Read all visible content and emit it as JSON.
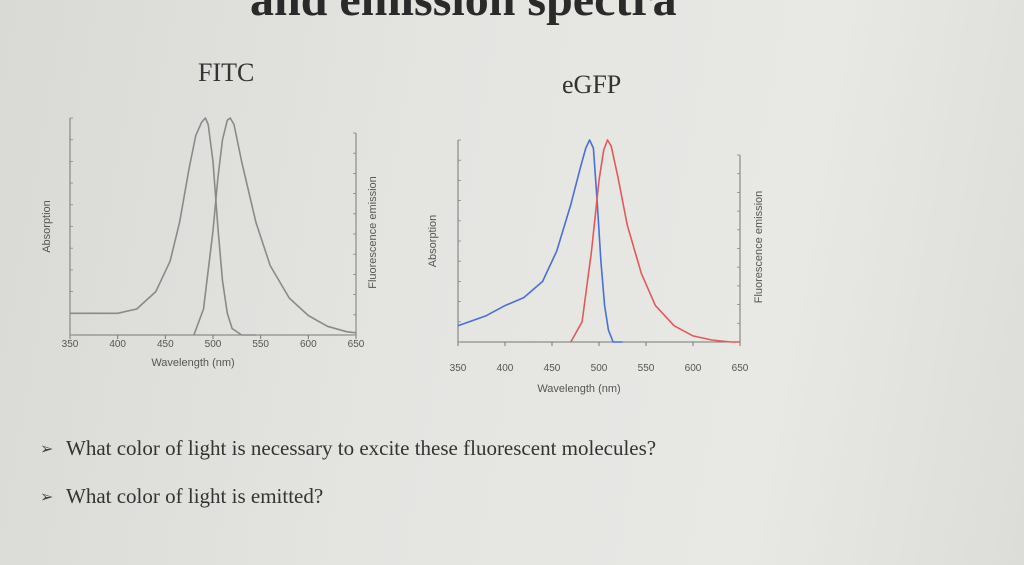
{
  "slide": {
    "title_partial": "and emission spectra",
    "questions": [
      "What color of light is necessary to excite these fluorescent molecules?",
      "What color of light is emitted?"
    ],
    "bullet_glyph": "➢"
  },
  "chart_data": [
    {
      "type": "line",
      "title": "FITC",
      "xlabel": "Wavelength (nm)",
      "ylabel_left": "Absorption",
      "ylabel_right": "Fluorescence emission",
      "x_ticks": [
        350,
        400,
        450,
        500,
        550,
        600,
        650
      ],
      "xlim": [
        350,
        650
      ],
      "ylim": [
        0,
        1
      ],
      "colors": {
        "absorption": "#8a8a8a",
        "emission": "#8a8a8a"
      },
      "series": [
        {
          "role": "absorption",
          "x": [
            350,
            380,
            400,
            420,
            440,
            455,
            465,
            475,
            482,
            488,
            492,
            495,
            500,
            505,
            510,
            515,
            520,
            530,
            545
          ],
          "values": [
            0.1,
            0.1,
            0.1,
            0.12,
            0.2,
            0.34,
            0.52,
            0.77,
            0.92,
            0.98,
            1.0,
            0.97,
            0.8,
            0.5,
            0.25,
            0.1,
            0.03,
            0.0,
            0.0
          ]
        },
        {
          "role": "emission",
          "x": [
            480,
            490,
            500,
            505,
            510,
            515,
            518,
            522,
            530,
            545,
            560,
            580,
            600,
            620,
            640,
            650
          ],
          "values": [
            0.0,
            0.12,
            0.48,
            0.72,
            0.9,
            0.99,
            1.0,
            0.97,
            0.8,
            0.52,
            0.32,
            0.17,
            0.09,
            0.04,
            0.015,
            0.01
          ]
        }
      ]
    },
    {
      "type": "line",
      "title": "eGFP",
      "xlabel": "Wavelength (nm)",
      "ylabel_left": "Absorption",
      "ylabel_right": "Fluorescence emission",
      "x_ticks": [
        350,
        400,
        450,
        500,
        550,
        600,
        650
      ],
      "xlim": [
        350,
        650
      ],
      "ylim": [
        0,
        1
      ],
      "colors": {
        "absorption": "#4a6fd6",
        "emission": "#e05a5a"
      },
      "series": [
        {
          "role": "absorption",
          "x": [
            350,
            380,
            400,
            420,
            440,
            455,
            470,
            480,
            486,
            490,
            494,
            498,
            502,
            506,
            510,
            515,
            525
          ],
          "values": [
            0.08,
            0.13,
            0.18,
            0.22,
            0.3,
            0.45,
            0.68,
            0.86,
            0.96,
            1.0,
            0.96,
            0.7,
            0.4,
            0.18,
            0.06,
            0.0,
            0.0
          ]
        },
        {
          "role": "emission",
          "x": [
            470,
            482,
            492,
            500,
            505,
            509,
            513,
            520,
            530,
            545,
            560,
            580,
            600,
            620,
            640,
            650
          ],
          "values": [
            0.0,
            0.1,
            0.45,
            0.8,
            0.95,
            1.0,
            0.97,
            0.82,
            0.58,
            0.34,
            0.18,
            0.08,
            0.03,
            0.01,
            0.0,
            0.0
          ]
        }
      ]
    }
  ]
}
